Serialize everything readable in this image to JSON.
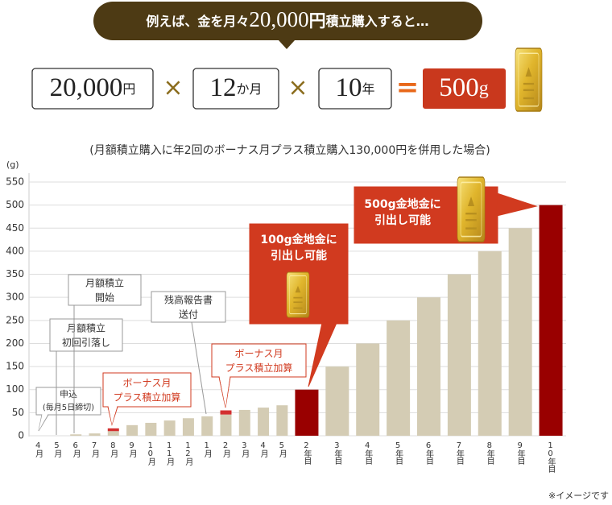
{
  "header": {
    "banner_prefix": "例えば、金を月々",
    "banner_amount": "20,000",
    "banner_unit": "円",
    "banner_suffix": "積立購入すると…",
    "terms": [
      {
        "number": "20,000",
        "unit": "円"
      },
      {
        "number": "12",
        "unit": "か月"
      },
      {
        "number": "10",
        "unit": "年"
      }
    ],
    "times": "×",
    "equals": "=",
    "result": {
      "number": "500",
      "unit": "g"
    }
  },
  "chart_data": {
    "type": "bar",
    "subtitle": "(月額積立購入に年2回のボーナス月プラス積立購入130,000円を併用した場合)",
    "y_unit": "(g)",
    "categories": [
      "4月",
      "5月",
      "6月",
      "7月",
      "8月",
      "9月",
      "10月",
      "11月",
      "12月",
      "1月",
      "2月",
      "3月",
      "4月",
      "5月",
      "2年目",
      "3年目",
      "4年目",
      "5年目",
      "6年目",
      "7年目",
      "8年目",
      "9年目",
      "10年目"
    ],
    "values": [
      0,
      0,
      3,
      5,
      10,
      23,
      28,
      33,
      38,
      42,
      46,
      56,
      61,
      66,
      100,
      150,
      200,
      250,
      300,
      350,
      400,
      450,
      500
    ],
    "bonus_values": [
      null,
      null,
      null,
      null,
      6,
      null,
      null,
      null,
      null,
      null,
      9,
      null,
      null,
      null,
      null,
      null,
      null,
      null,
      null,
      null,
      null,
      null,
      null
    ],
    "colors": [
      "#d4ccb4",
      "#d4ccb4",
      "#d4ccb4",
      "#d4ccb4",
      "#d4ccb4",
      "#d4ccb4",
      "#d4ccb4",
      "#d4ccb4",
      "#d4ccb4",
      "#d4ccb4",
      "#d4ccb4",
      "#d4ccb4",
      "#d4ccb4",
      "#d4ccb4",
      "#990000",
      "#d4ccb4",
      "#d4ccb4",
      "#d4ccb4",
      "#d4ccb4",
      "#d4ccb4",
      "#d4ccb4",
      "#d4ccb4",
      "#990000"
    ],
    "bonus_color": "#d32f2f",
    "ylim": [
      0,
      550
    ],
    "yticks": [
      0,
      50,
      100,
      150,
      200,
      250,
      300,
      350,
      400,
      450,
      500,
      550
    ],
    "grid": true,
    "annotations": [
      {
        "lines": [
          "申込",
          "(毎月5日締切)"
        ]
      },
      {
        "lines": [
          "月額積立",
          "初回引落し"
        ]
      },
      {
        "lines": [
          "月額積立",
          "開始"
        ]
      },
      {
        "lines": [
          "残高報告書",
          "送付"
        ]
      },
      {
        "lines": [
          "ボーナス月",
          "プラス積立加算"
        ]
      },
      {
        "lines": [
          "ボーナス月",
          "プラス積立加算"
        ]
      },
      {
        "lines": [
          "100g金地金に",
          "引出し可能"
        ]
      },
      {
        "lines": [
          "500g金地金に",
          "引出し可能"
        ]
      }
    ],
    "note": "※イメージです"
  }
}
